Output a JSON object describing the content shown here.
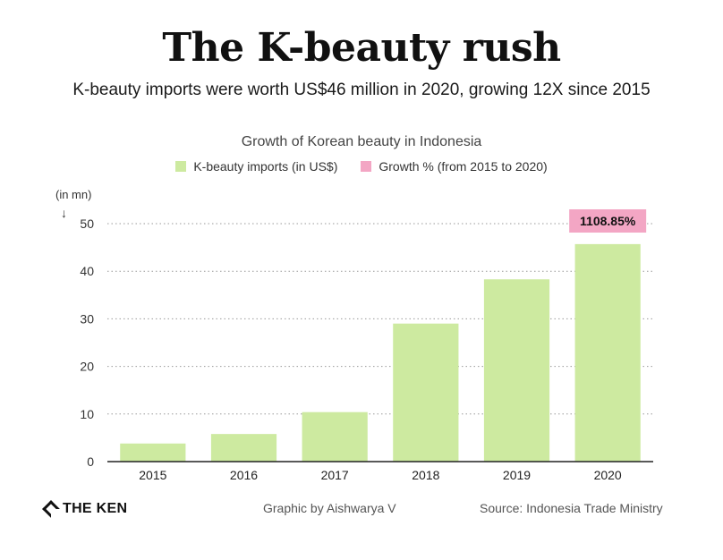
{
  "title": "The K-beauty rush",
  "subtitle": "K-beauty imports were worth US$46 million in 2020, growing 12X since 2015",
  "footer": {
    "logo": "THE KEN",
    "credit": "Graphic by Aishwarya V",
    "source": "Source: Indonesia Trade Ministry"
  },
  "colors": {
    "bar": "#cdeaa0",
    "growth": "#f3a6c4",
    "grid": "#9a9a9a"
  },
  "chart_data": {
    "type": "bar",
    "title": "Growth of Korean beauty in Indonesia",
    "unit_label": "(in mn)",
    "unit_arrow": "↓",
    "categories": [
      "2015",
      "2016",
      "2017",
      "2018",
      "2019",
      "2020"
    ],
    "series": [
      {
        "name": "K-beauty imports (in US$)",
        "values": [
          3.8,
          5.8,
          10.4,
          29.0,
          38.3,
          45.7
        ]
      }
    ],
    "legend": [
      "K-beauty imports (in US$)",
      "Growth % (from 2015 to 2020)"
    ],
    "annotation": {
      "category": "2020",
      "text": "1108.85%"
    },
    "yticks": [
      0,
      10,
      20,
      30,
      40,
      50
    ],
    "ylim": [
      0,
      50
    ],
    "xlabel": "",
    "ylabel": "",
    "grid": true,
    "legend_position": "top-center"
  }
}
